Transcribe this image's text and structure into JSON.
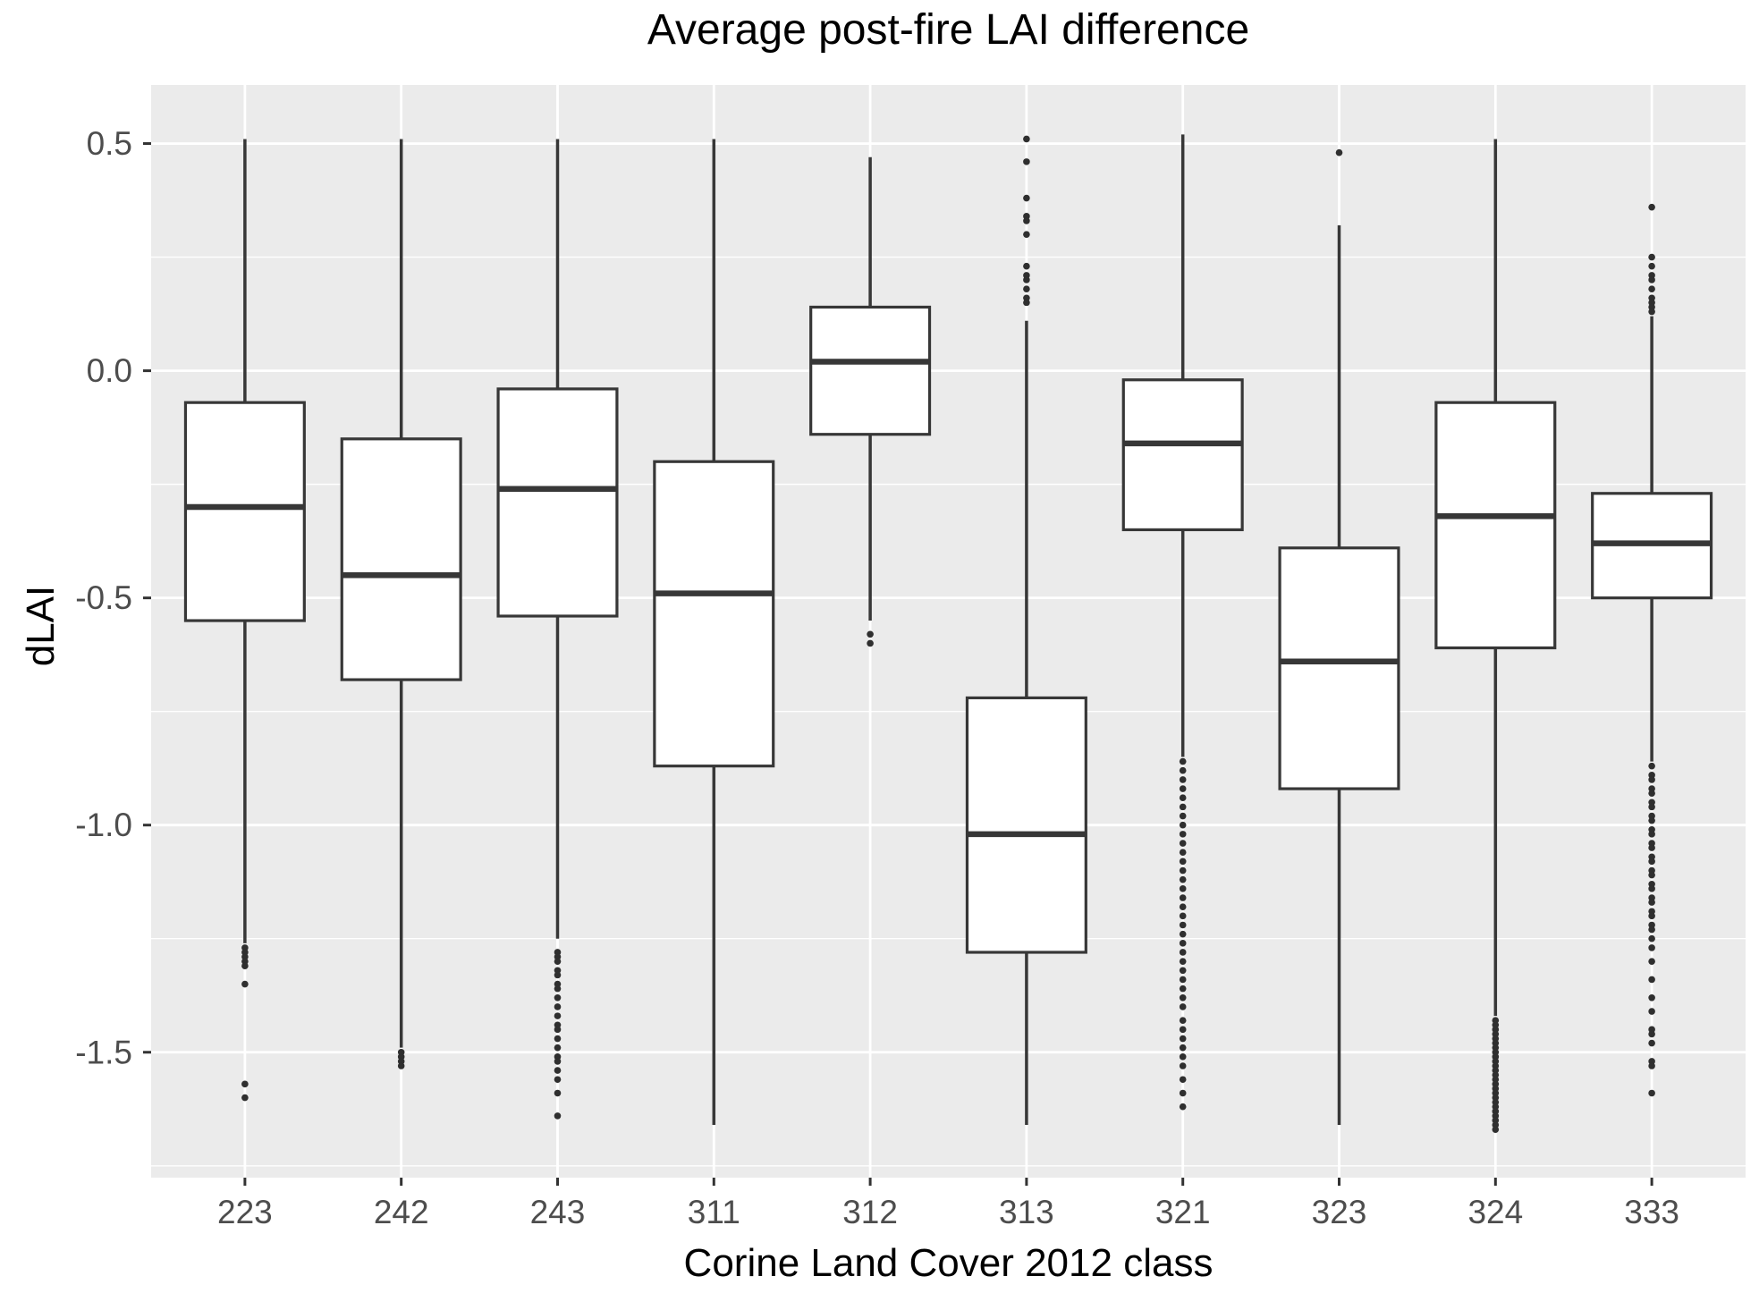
{
  "chart_data": {
    "type": "boxplot",
    "title": "Average post-fire LAI difference",
    "xlabel": "Corine Land Cover 2012 class",
    "ylabel": "dLAI",
    "categories": [
      "223",
      "242",
      "243",
      "311",
      "312",
      "313",
      "321",
      "323",
      "324",
      "333"
    ],
    "y_ticks": [
      0.5,
      0.0,
      -0.5,
      -1.0,
      -1.5
    ],
    "y_tick_labels": [
      "0.5",
      "0.0",
      "-0.5",
      "-1.0",
      "-1.5"
    ],
    "y_minor_ticks": [
      0.25,
      -0.25,
      -0.75,
      -1.25,
      -1.75
    ],
    "ylim": [
      -1.776,
      0.629
    ],
    "grid": "white major and minor horizontal+vertical gridlines on grey panel",
    "legend": "none",
    "boxes": [
      {
        "category": "223",
        "whisker_low": -1.26,
        "q1": -0.55,
        "median": -0.3,
        "q3": -0.07,
        "whisker_high": 0.51,
        "outliers": [
          -1.27,
          -1.28,
          -1.29,
          -1.3,
          -1.31,
          -1.35,
          -1.57,
          -1.6
        ]
      },
      {
        "category": "242",
        "whisker_low": -1.49,
        "q1": -0.68,
        "median": -0.45,
        "q3": -0.15,
        "whisker_high": 0.51,
        "outliers": [
          -1.5,
          -1.51,
          -1.52,
          -1.53
        ]
      },
      {
        "category": "243",
        "whisker_low": -1.25,
        "q1": -0.54,
        "median": -0.26,
        "q3": -0.04,
        "whisker_high": 0.51,
        "outliers": [
          -1.28,
          -1.29,
          -1.3,
          -1.32,
          -1.33,
          -1.35,
          -1.36,
          -1.38,
          -1.4,
          -1.42,
          -1.44,
          -1.45,
          -1.47,
          -1.49,
          -1.51,
          -1.52,
          -1.54,
          -1.56,
          -1.59,
          -1.64
        ]
      },
      {
        "category": "311",
        "whisker_low": -1.66,
        "q1": -0.87,
        "median": -0.49,
        "q3": -0.2,
        "whisker_high": 0.51,
        "outliers": []
      },
      {
        "category": "312",
        "whisker_low": -0.55,
        "q1": -0.14,
        "median": 0.02,
        "q3": 0.14,
        "whisker_high": 0.47,
        "outliers": [
          -0.58,
          -0.6
        ]
      },
      {
        "category": "313",
        "whisker_low": -1.66,
        "q1": -1.28,
        "median": -1.02,
        "q3": -0.72,
        "whisker_high": 0.11,
        "outliers": [
          0.51,
          0.46,
          0.38,
          0.34,
          0.33,
          0.3,
          0.23,
          0.21,
          0.2,
          0.18,
          0.16,
          0.15
        ]
      },
      {
        "category": "321",
        "whisker_low": -0.85,
        "q1": -0.35,
        "median": -0.16,
        "q3": -0.02,
        "whisker_high": 0.52,
        "outliers": [
          -0.86,
          -0.88,
          -0.9,
          -0.92,
          -0.94,
          -0.96,
          -0.98,
          -1.0,
          -1.02,
          -1.04,
          -1.06,
          -1.08,
          -1.1,
          -1.12,
          -1.14,
          -1.16,
          -1.18,
          -1.2,
          -1.22,
          -1.24,
          -1.26,
          -1.28,
          -1.3,
          -1.32,
          -1.34,
          -1.36,
          -1.38,
          -1.4,
          -1.43,
          -1.45,
          -1.47,
          -1.49,
          -1.51,
          -1.53,
          -1.56,
          -1.59,
          -1.62
        ]
      },
      {
        "category": "323",
        "whisker_low": -1.66,
        "q1": -0.92,
        "median": -0.64,
        "q3": -0.39,
        "whisker_high": 0.32,
        "outliers": [
          0.48
        ]
      },
      {
        "category": "324",
        "whisker_low": -1.42,
        "q1": -0.61,
        "median": -0.32,
        "q3": -0.07,
        "whisker_high": 0.51,
        "outliers": [
          -1.43,
          -1.44,
          -1.45,
          -1.46,
          -1.47,
          -1.48,
          -1.49,
          -1.5,
          -1.51,
          -1.52,
          -1.53,
          -1.54,
          -1.55,
          -1.56,
          -1.57,
          -1.58,
          -1.59,
          -1.6,
          -1.61,
          -1.62,
          -1.63,
          -1.64,
          -1.65,
          -1.66,
          -1.67
        ]
      },
      {
        "category": "333",
        "whisker_low": -0.86,
        "q1": -0.5,
        "median": -0.38,
        "q3": -0.27,
        "whisker_high": 0.12,
        "outliers": [
          0.36,
          0.25,
          0.23,
          0.21,
          0.2,
          0.18,
          0.16,
          0.15,
          0.14,
          0.13,
          -0.87,
          -0.89,
          -0.9,
          -0.92,
          -0.93,
          -0.95,
          -0.96,
          -0.98,
          -0.99,
          -1.01,
          -1.02,
          -1.04,
          -1.05,
          -1.07,
          -1.08,
          -1.1,
          -1.11,
          -1.13,
          -1.14,
          -1.16,
          -1.17,
          -1.19,
          -1.2,
          -1.22,
          -1.23,
          -1.25,
          -1.27,
          -1.3,
          -1.34,
          -1.38,
          -1.41,
          -1.45,
          -1.46,
          -1.48,
          -1.52,
          -1.53,
          -1.59
        ]
      }
    ]
  },
  "style": {
    "panel_background": "#EBEBEB",
    "gridline_color": "#FFFFFF",
    "box_fill": "#FFFFFF",
    "box_stroke": "#373737",
    "outlier_color": "#2f2f2f",
    "tick_mark_color": "#333333",
    "tick_label_color": "#4D4D4D",
    "title_color": "#000000"
  }
}
